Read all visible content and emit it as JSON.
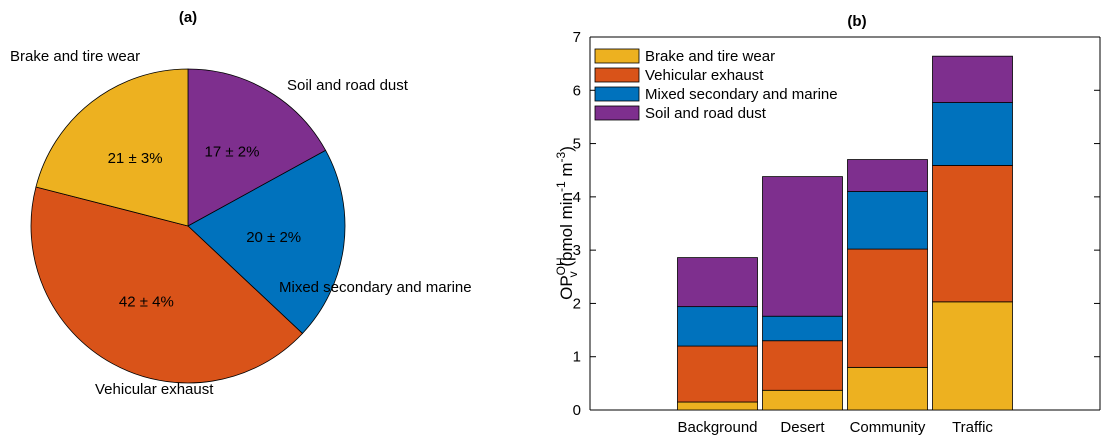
{
  "colors": {
    "brake": "#EDB120",
    "vehicular": "#D95319",
    "mixed": "#0072BD",
    "soil": "#7E2F8E"
  },
  "chart_data": [
    {
      "type": "pie",
      "title": "(a)",
      "slices": [
        {
          "label": "Soil and road dust",
          "value": 17,
          "text": "17 ± 2%",
          "color": "#7E2F8E"
        },
        {
          "label": "Mixed secondary and marine",
          "value": 20,
          "text": "20 ± 2%",
          "color": "#0072BD"
        },
        {
          "label": "Vehicular exhaust",
          "value": 42,
          "text": "42 ± 4%",
          "color": "#D95319"
        },
        {
          "label": "Brake and tire wear",
          "value": 21,
          "text": "21 ± 3%",
          "color": "#EDB120"
        }
      ]
    },
    {
      "type": "bar",
      "stacked": true,
      "title": "(b)",
      "ylabel": {
        "base": "OP",
        "sup": "OH",
        "sub": "v",
        "rest": "(pmol min",
        "exp1": "-1",
        "mid": " m",
        "exp2": "-3",
        "end": ")"
      },
      "ylim": [
        0,
        7
      ],
      "yticks": [
        0,
        1,
        2,
        3,
        4,
        5,
        6,
        7
      ],
      "categories": [
        "Background",
        "Desert",
        "Community",
        "Traffic"
      ],
      "legend_position": "top-left",
      "series": [
        {
          "name": "Brake and tire wear",
          "color": "#EDB120",
          "values": [
            0.15,
            0.37,
            0.8,
            2.03
          ]
        },
        {
          "name": "Vehicular exhaust",
          "color": "#D95319",
          "values": [
            1.05,
            0.93,
            2.22,
            2.56
          ]
        },
        {
          "name": "Mixed secondary and marine",
          "color": "#0072BD",
          "values": [
            0.74,
            0.46,
            1.08,
            1.18
          ]
        },
        {
          "name": "Soil and road dust",
          "color": "#7E2F8E",
          "values": [
            0.92,
            2.62,
            0.6,
            0.87
          ]
        }
      ]
    }
  ]
}
